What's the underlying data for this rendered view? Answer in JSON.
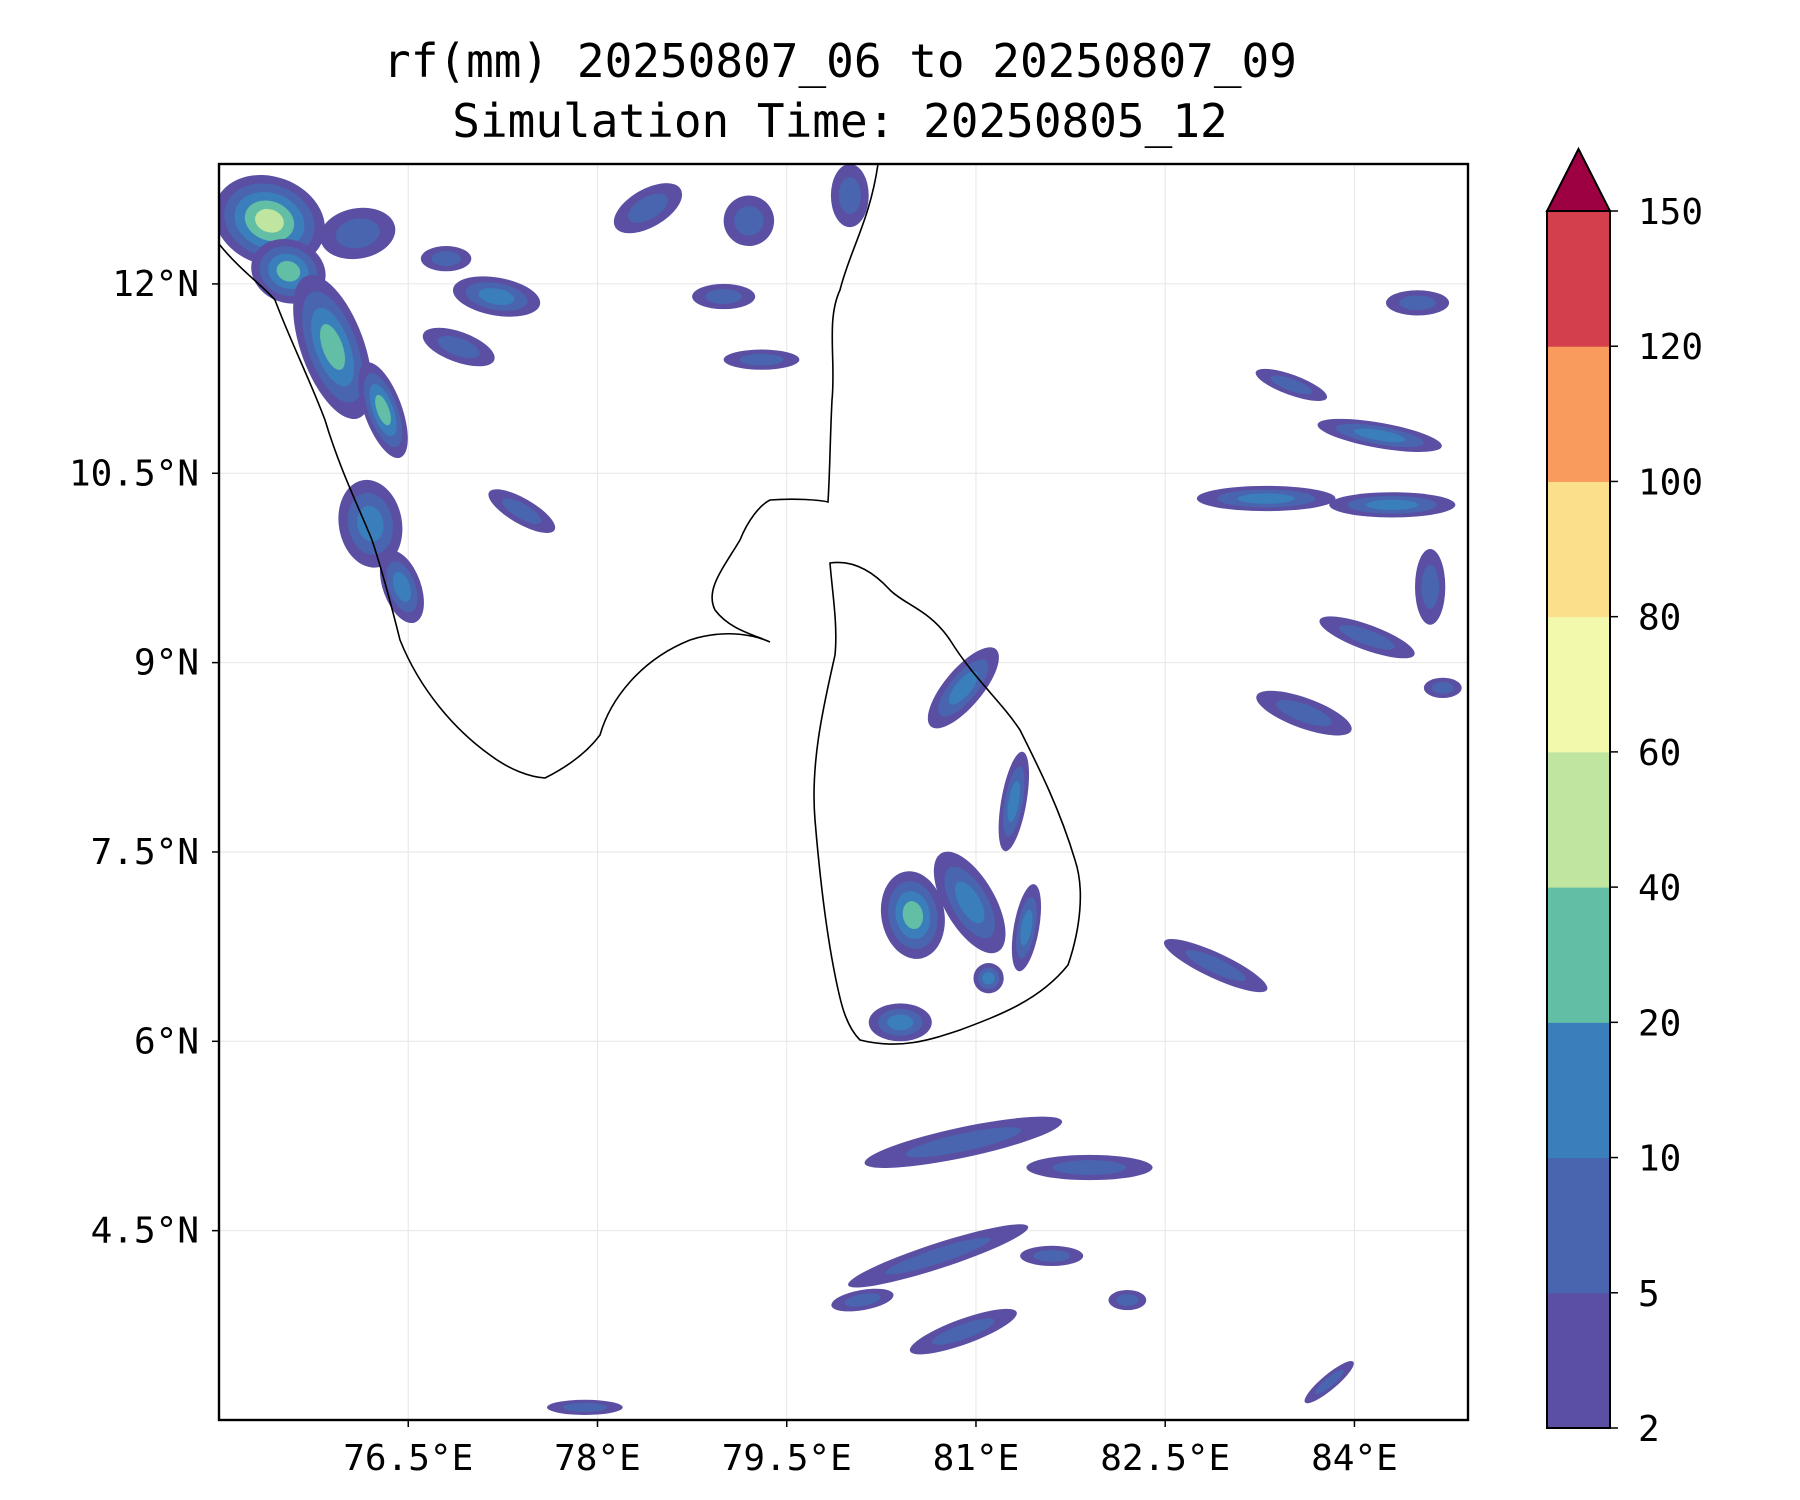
{
  "title": {
    "line1": "rf(mm) 20250807_06 to 20250807_09",
    "line2": "Simulation Time: 20250805_12"
  },
  "map": {
    "lon_range": [
      75.0,
      84.9
    ],
    "lat_range": [
      3.0,
      12.95
    ],
    "x_ticks": [
      {
        "value": 76.5,
        "label": "76.5°E"
      },
      {
        "value": 78.0,
        "label": "78°E"
      },
      {
        "value": 79.5,
        "label": "79.5°E"
      },
      {
        "value": 81.0,
        "label": "81°E"
      },
      {
        "value": 82.5,
        "label": "82.5°E"
      },
      {
        "value": 84.0,
        "label": "84°E"
      }
    ],
    "y_ticks": [
      {
        "value": 12.0,
        "label": "12°N"
      },
      {
        "value": 10.5,
        "label": "10.5°N"
      },
      {
        "value": 9.0,
        "label": "9°N"
      },
      {
        "value": 7.5,
        "label": "7.5°N"
      },
      {
        "value": 6.0,
        "label": "6°N"
      },
      {
        "value": 4.5,
        "label": "4.5°N"
      }
    ],
    "gridlines": true
  },
  "colorbar": {
    "levels": [
      "2",
      "5",
      "10",
      "20",
      "40",
      "60",
      "80",
      "100",
      "120",
      "150"
    ],
    "colors": [
      "#5a4fa2",
      "#4a65af",
      "#3a7fbc",
      "#62bea5",
      "#bfe5a0",
      "#f2f9ad",
      "#fcdf8a",
      "#f99b5c",
      "#d43f4d"
    ],
    "extend_color": "#9e0142"
  },
  "rain_cells": [
    {
      "lon": 75.4,
      "lat": 12.5,
      "rx": 0.35,
      "ry": 0.45,
      "angle": 70,
      "level": 4
    },
    {
      "lon": 75.55,
      "lat": 12.1,
      "rx": 0.25,
      "ry": 0.3,
      "angle": 70,
      "level": 3
    },
    {
      "lon": 75.9,
      "lat": 11.5,
      "rx": 0.25,
      "ry": 0.6,
      "angle": 20,
      "level": 3
    },
    {
      "lon": 76.3,
      "lat": 11.0,
      "rx": 0.15,
      "ry": 0.4,
      "angle": 20,
      "level": 3
    },
    {
      "lon": 76.1,
      "lat": 12.4,
      "rx": 0.3,
      "ry": 0.2,
      "angle": 10,
      "level": 1
    },
    {
      "lon": 76.8,
      "lat": 12.2,
      "rx": 0.2,
      "ry": 0.1,
      "angle": 0,
      "level": 1
    },
    {
      "lon": 77.2,
      "lat": 11.9,
      "rx": 0.35,
      "ry": 0.15,
      "angle": -10,
      "level": 2
    },
    {
      "lon": 76.9,
      "lat": 11.5,
      "rx": 0.3,
      "ry": 0.12,
      "angle": -20,
      "level": 1
    },
    {
      "lon": 76.2,
      "lat": 10.1,
      "rx": 0.25,
      "ry": 0.35,
      "angle": 10,
      "level": 2
    },
    {
      "lon": 76.45,
      "lat": 9.6,
      "rx": 0.15,
      "ry": 0.3,
      "angle": 20,
      "level": 2
    },
    {
      "lon": 77.4,
      "lat": 10.2,
      "rx": 0.3,
      "ry": 0.1,
      "angle": -30,
      "level": 1
    },
    {
      "lon": 78.4,
      "lat": 12.6,
      "rx": 0.3,
      "ry": 0.15,
      "angle": 30,
      "level": 1
    },
    {
      "lon": 79.2,
      "lat": 12.5,
      "rx": 0.2,
      "ry": 0.2,
      "angle": 30,
      "level": 1
    },
    {
      "lon": 79.0,
      "lat": 11.9,
      "rx": 0.25,
      "ry": 0.1,
      "angle": 0,
      "level": 1
    },
    {
      "lon": 79.3,
      "lat": 11.4,
      "rx": 0.3,
      "ry": 0.08,
      "angle": 0,
      "level": 1
    },
    {
      "lon": 80.0,
      "lat": 12.7,
      "rx": 0.15,
      "ry": 0.25,
      "angle": 0,
      "level": 1
    },
    {
      "lon": 80.9,
      "lat": 8.8,
      "rx": 0.15,
      "ry": 0.4,
      "angle": -40,
      "level": 2
    },
    {
      "lon": 81.3,
      "lat": 7.9,
      "rx": 0.1,
      "ry": 0.4,
      "angle": -10,
      "level": 2
    },
    {
      "lon": 80.5,
      "lat": 7.0,
      "rx": 0.25,
      "ry": 0.35,
      "angle": 10,
      "level": 3
    },
    {
      "lon": 80.95,
      "lat": 7.1,
      "rx": 0.2,
      "ry": 0.45,
      "angle": 30,
      "level": 2
    },
    {
      "lon": 81.4,
      "lat": 6.9,
      "rx": 0.1,
      "ry": 0.35,
      "angle": -10,
      "level": 2
    },
    {
      "lon": 80.4,
      "lat": 6.15,
      "rx": 0.25,
      "ry": 0.15,
      "angle": 0,
      "level": 2
    },
    {
      "lon": 81.1,
      "lat": 6.5,
      "rx": 0.12,
      "ry": 0.12,
      "angle": 0,
      "level": 2
    },
    {
      "lon": 80.9,
      "lat": 5.2,
      "rx": 0.8,
      "ry": 0.12,
      "angle": 12,
      "level": 1
    },
    {
      "lon": 81.9,
      "lat": 5.0,
      "rx": 0.5,
      "ry": 0.1,
      "angle": 0,
      "level": 1
    },
    {
      "lon": 80.7,
      "lat": 4.3,
      "rx": 0.75,
      "ry": 0.1,
      "angle": 18,
      "level": 1
    },
    {
      "lon": 80.9,
      "lat": 3.7,
      "rx": 0.45,
      "ry": 0.1,
      "angle": 20,
      "level": 1
    },
    {
      "lon": 80.1,
      "lat": 3.95,
      "rx": 0.25,
      "ry": 0.08,
      "angle": 10,
      "level": 1
    },
    {
      "lon": 81.6,
      "lat": 4.3,
      "rx": 0.25,
      "ry": 0.08,
      "angle": 0,
      "level": 1
    },
    {
      "lon": 82.2,
      "lat": 3.95,
      "rx": 0.15,
      "ry": 0.08,
      "angle": 0,
      "level": 1
    },
    {
      "lon": 82.9,
      "lat": 6.6,
      "rx": 0.45,
      "ry": 0.1,
      "angle": -25,
      "level": 1
    },
    {
      "lon": 83.3,
      "lat": 10.3,
      "rx": 0.55,
      "ry": 0.1,
      "angle": 0,
      "level": 2
    },
    {
      "lon": 84.3,
      "lat": 10.25,
      "rx": 0.5,
      "ry": 0.1,
      "angle": 0,
      "level": 2
    },
    {
      "lon": 84.2,
      "lat": 10.8,
      "rx": 0.5,
      "ry": 0.1,
      "angle": -10,
      "level": 2
    },
    {
      "lon": 83.5,
      "lat": 11.2,
      "rx": 0.3,
      "ry": 0.08,
      "angle": -20,
      "level": 1
    },
    {
      "lon": 84.5,
      "lat": 11.85,
      "rx": 0.25,
      "ry": 0.1,
      "angle": 0,
      "level": 1
    },
    {
      "lon": 84.1,
      "lat": 9.2,
      "rx": 0.4,
      "ry": 0.1,
      "angle": -20,
      "level": 1
    },
    {
      "lon": 83.6,
      "lat": 8.6,
      "rx": 0.4,
      "ry": 0.12,
      "angle": -20,
      "level": 1
    },
    {
      "lon": 84.6,
      "lat": 9.6,
      "rx": 0.12,
      "ry": 0.3,
      "angle": 0,
      "level": 1
    },
    {
      "lon": 84.7,
      "lat": 8.8,
      "rx": 0.15,
      "ry": 0.08,
      "angle": 0,
      "level": 1
    },
    {
      "lon": 77.9,
      "lat": 3.1,
      "rx": 0.3,
      "ry": 0.06,
      "angle": 0,
      "level": 1
    },
    {
      "lon": 83.8,
      "lat": 3.3,
      "rx": 0.25,
      "ry": 0.06,
      "angle": 40,
      "level": 1
    }
  ]
}
